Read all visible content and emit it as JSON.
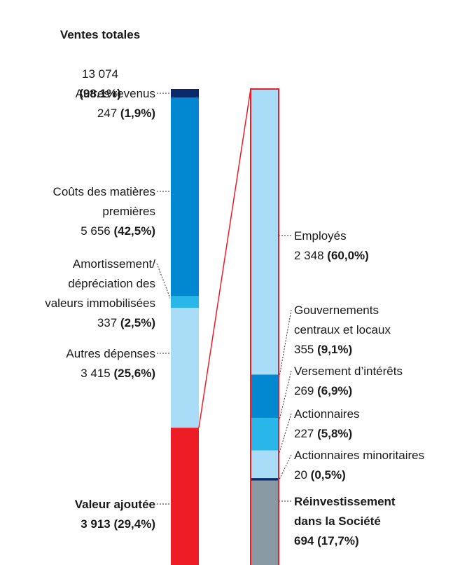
{
  "chart_data": [
    {
      "type": "stacked-bar",
      "title": "Ventes totales",
      "total_label": "13 074",
      "total_share_label": "(98.1%)",
      "categories": [
        "Autres revenus",
        "Coûts des matières\npremières",
        "Amortissement/\ndépréciation des\nvaleurs immobilisées",
        "Autres dépenses",
        "Valeur ajoutée"
      ],
      "values": [
        247,
        5656,
        337,
        3415,
        3913
      ],
      "value_labels": [
        "247",
        "5 656",
        "337",
        "3 415",
        "3 913"
      ],
      "share_labels": [
        "(1,9%)",
        "(42,5%)",
        "(2,5%)",
        "(25,6%)",
        "(29,4%)"
      ],
      "colors": [
        "#0b2a6b",
        "#0288d1",
        "#29b6e8",
        "#a8dcf7",
        "#ee1c25"
      ]
    },
    {
      "type": "stacked-bar",
      "categories": [
        "Employés",
        "Gouvernements\ncentraux et locaux",
        "Versement d’intérêts",
        "Actionnaires",
        "Actionnaires minoritaires",
        "Réinvestissement\ndans la Société"
      ],
      "values": [
        2348,
        355,
        269,
        227,
        20,
        694
      ],
      "value_labels": [
        "2 348",
        "355",
        "269",
        "227",
        "20",
        "694"
      ],
      "share_labels": [
        "(60,0%)",
        "(9,1%)",
        "(6,9%)",
        "(5,8%)",
        "(0,5%)",
        "(17,7%)"
      ],
      "colors": [
        "#a8dcf7",
        "#0288d1",
        "#29b6e8",
        "#a8dcf7",
        "#0b2a6b",
        "#8a9aa5"
      ]
    }
  ]
}
